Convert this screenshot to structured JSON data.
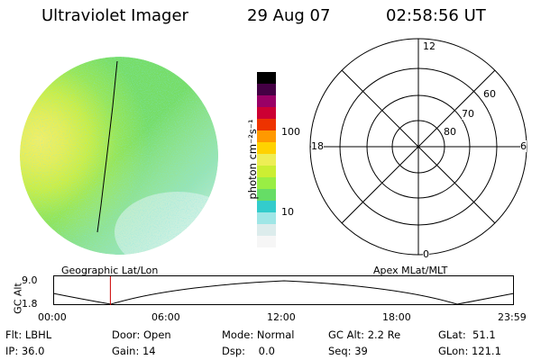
{
  "header": {
    "instrument": "Ultraviolet Imager",
    "date": "29 Aug 07",
    "time": "02:58:56 UT"
  },
  "colorbar": {
    "label": "photon cm⁻²s⁻¹",
    "ticks": [
      "100",
      "10"
    ],
    "colors": [
      "#f6f6f6",
      "#dcecec",
      "#9fe6e6",
      "#33cccc",
      "#66dd66",
      "#99ee44",
      "#ccee33",
      "#eeee55",
      "#ffd200",
      "#ff9900",
      "#ee3300",
      "#cc0033",
      "#990066",
      "#440044",
      "#000000"
    ]
  },
  "polar_plot": {
    "labels": {
      "top": "12",
      "bottom": "0",
      "left": "18",
      "right": "6",
      "lat60": "60",
      "lat70": "70",
      "lat80": "80"
    }
  },
  "timeline": {
    "ylabel": "GC Alt",
    "ymax": "9.0",
    "ymin": "1.8",
    "left_title": "Geographic Lat/Lon",
    "right_title": "Apex MLat/MLT",
    "xticks": [
      "00:00",
      "06:00",
      "12:00",
      "18:00",
      "23:59"
    ],
    "current_time_hours": 2.98
  },
  "status": {
    "flt": "Flt: LBHL",
    "ip": "IP: 36.0",
    "door": "Door: Open",
    "gain": "Gain: 14",
    "mode": "Mode: Normal",
    "dsp": "Dsp:    0.0",
    "gc_alt": "GC Alt: 2.2 Re",
    "seq": "Seq: 39",
    "glat": "GLat:  51.1",
    "glon": "GLon: 121.1"
  }
}
